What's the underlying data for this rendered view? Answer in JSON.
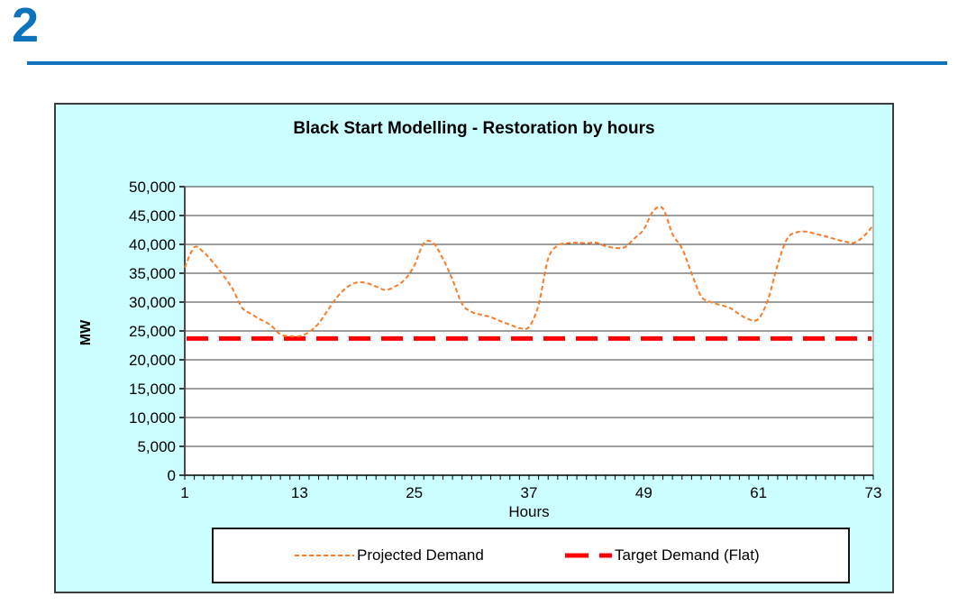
{
  "page": {
    "slide_number": "2",
    "accent_color": "#1173BE",
    "background": "#FFFFFF"
  },
  "chart": {
    "background": "#CCFFFF",
    "plot_background": "#FFFFFF",
    "gridline_color": "#3d3d3d",
    "border_color": "#3c3c3c"
  },
  "chart_data": {
    "type": "line",
    "title": "Black Start Modelling - Restoration by hours",
    "xlabel": "Hours",
    "ylabel": "MW",
    "xlim": [
      1,
      73
    ],
    "ylim": [
      0,
      50000
    ],
    "x_ticks": [
      1,
      13,
      25,
      37,
      49,
      61,
      73
    ],
    "y_ticks": [
      0,
      5000,
      10000,
      15000,
      20000,
      25000,
      30000,
      35000,
      40000,
      45000,
      50000
    ],
    "grid": "horizontal",
    "legend_position": "bottom",
    "x": [
      1,
      2,
      3,
      4,
      5,
      6,
      7,
      8,
      9,
      10,
      11,
      12,
      13,
      14,
      15,
      16,
      17,
      18,
      19,
      20,
      21,
      22,
      23,
      24,
      25,
      26,
      27,
      28,
      29,
      30,
      31,
      32,
      33,
      34,
      35,
      36,
      37,
      38,
      39,
      40,
      41,
      42,
      43,
      44,
      45,
      46,
      47,
      48,
      49,
      50,
      51,
      52,
      53,
      54,
      55,
      56,
      57,
      58,
      59,
      60,
      61,
      62,
      63,
      64,
      65,
      66,
      67,
      68,
      69,
      70,
      71,
      72,
      73
    ],
    "series": [
      {
        "name": "Projected Demand",
        "color": "#F97C26",
        "line_style": "dashed",
        "line_width": 2,
        "dash_pattern": "5 3",
        "values": [
          36000,
          39500,
          38600,
          36800,
          34700,
          32300,
          29000,
          27900,
          26900,
          26000,
          24400,
          24100,
          24100,
          24800,
          26300,
          28700,
          31000,
          32600,
          33400,
          33300,
          32700,
          32100,
          32700,
          33900,
          36300,
          40200,
          40200,
          37500,
          33900,
          29700,
          28300,
          27800,
          27400,
          26700,
          26100,
          25500,
          25700,
          29500,
          37500,
          39800,
          40200,
          40300,
          40200,
          40300,
          39700,
          39400,
          39500,
          41000,
          42600,
          45800,
          46200,
          41800,
          39300,
          35000,
          31000,
          30000,
          29500,
          29000,
          27900,
          27000,
          27100,
          30500,
          36500,
          41000,
          42100,
          42200,
          41800,
          41400,
          40900,
          40500,
          40300,
          41400,
          43300
        ]
      },
      {
        "name": "Target Demand (Flat)",
        "color": "#FF0000",
        "line_style": "long-dashed",
        "line_width": 5,
        "dash_pattern": "24 12",
        "flat_value": 23700
      }
    ]
  }
}
